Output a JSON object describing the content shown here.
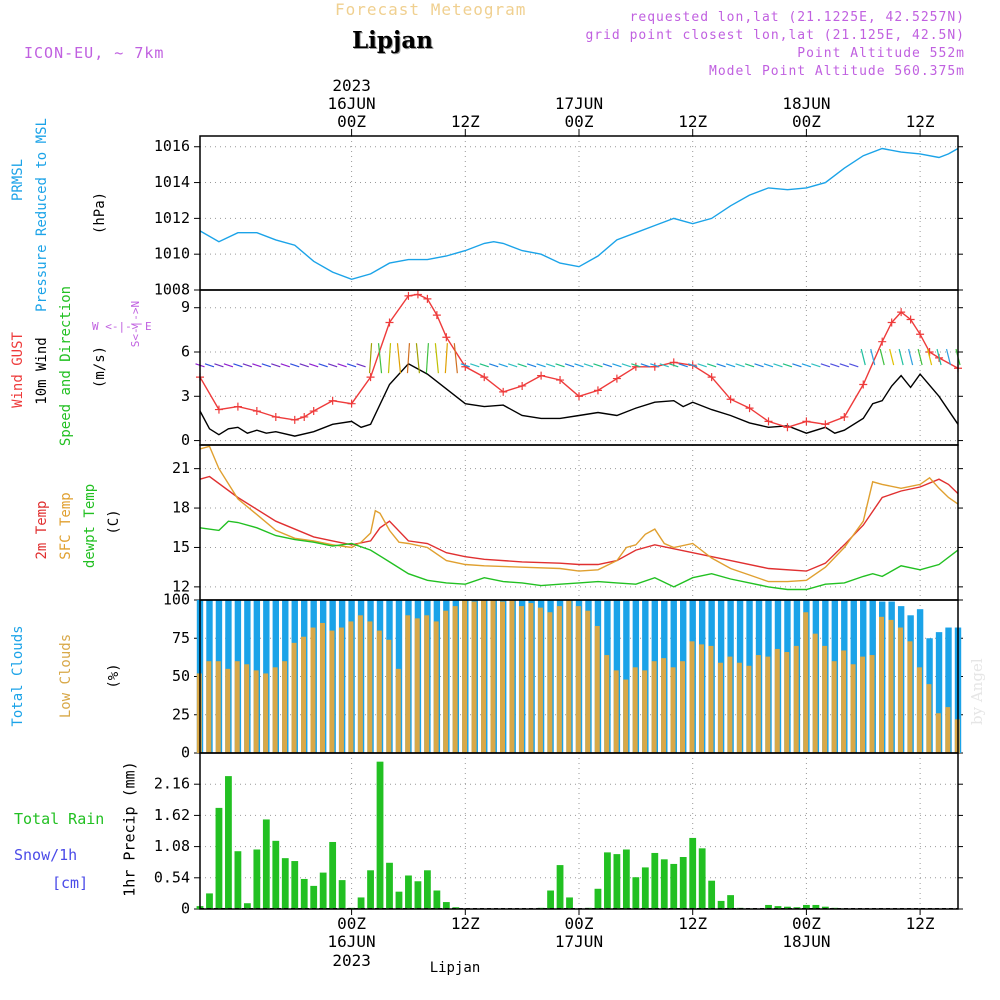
{
  "colors": {
    "pressure": "#1ba3e8",
    "gust": "#ee3b3b",
    "wind": "#000000",
    "temp2m": "#e03030",
    "sfc": "#e0a030",
    "dewpt": "#22c022",
    "totalClouds": "#1ba3e8",
    "lowClouds": "#d8a848",
    "rain": "#22c022",
    "header": "#c060e0",
    "title": "#f0d090",
    "snow": "#4a4ae8"
  },
  "header": {
    "model": "ICON-EU, ~ 7km",
    "title": "Forecast Meteogram",
    "location": "Lipjan",
    "info1": "requested lon,lat (21.1225E, 42.5257N)",
    "info2": "grid point closest lon,lat (21.125E, 42.5N)",
    "info3": "Point Altitude 552m",
    "info4": "Model Point Altitude 560.375m",
    "watermark": "by Angel"
  },
  "timeaxis": {
    "top": [
      {
        "l1": "2023",
        "l2": "16JUN",
        "l3": "00Z",
        "h": 16
      },
      {
        "l1": "",
        "l2": "",
        "l3": "12Z",
        "h": 28
      },
      {
        "l1": "",
        "l2": "17JUN",
        "l3": "00Z",
        "h": 40
      },
      {
        "l1": "",
        "l2": "",
        "l3": "12Z",
        "h": 52
      },
      {
        "l1": "",
        "l2": "18JUN",
        "l3": "00Z",
        "h": 64
      },
      {
        "l1": "",
        "l2": "",
        "l3": "12Z",
        "h": 76
      }
    ],
    "bottom": [
      {
        "l1": "00Z",
        "l2": "16JUN",
        "l3": "2023",
        "h": 16
      },
      {
        "l1": "12Z",
        "l2": "",
        "l3": "",
        "h": 28
      },
      {
        "l1": "00Z",
        "l2": "17JUN",
        "l3": "",
        "h": 40
      },
      {
        "l1": "12Z",
        "l2": "",
        "l3": "",
        "h": 52
      },
      {
        "l1": "00Z",
        "l2": "18JUN",
        "l3": "",
        "h": 64
      },
      {
        "l1": "12Z",
        "l2": "",
        "l3": "",
        "h": 76
      }
    ],
    "footer": "Lipjan"
  },
  "labels": {
    "p1": {
      "a": "PRMSL",
      "b": "Pressure Reduced to MSL",
      "c": "(hPa)"
    },
    "p2": {
      "a": "Wind GUST",
      "b": "10m Wind",
      "c": "Speed and Direction",
      "d": "(m/s)",
      "compass1": "W <-|-> E",
      "compass2": "S<-|->N"
    },
    "p3": {
      "a": "2m Temp",
      "b": "SFC Temp",
      "c": "dewpt Temp",
      "d": "(C)"
    },
    "p4": {
      "a": "Total Clouds",
      "b": "Low Clouds",
      "c": "(%)"
    },
    "p5": {
      "a": "Total  Rain",
      "b": "Snow/1h",
      "c": "[cm]",
      "d": "1hr Precip (mm)"
    }
  },
  "chart_data": [
    {
      "type": "line",
      "title": "PRMSL Pressure Reduced to MSL",
      "ylabel": "(hPa)",
      "x_hours_from": "2023-06-15 12Z",
      "ylim": [
        1008,
        1016.6
      ],
      "yticks": [
        1008,
        1010,
        1012,
        1014,
        1016
      ],
      "series": [
        {
          "name": "PRMSL",
          "color": "#1ba3e8",
          "x": [
            0,
            2,
            4,
            6,
            8,
            10,
            12,
            14,
            16,
            18,
            19,
            20,
            22,
            24,
            26,
            28,
            30,
            31,
            32,
            34,
            36,
            38,
            40,
            42,
            44,
            46,
            48,
            50,
            52,
            54,
            56,
            58,
            60,
            62,
            64,
            66,
            67,
            68,
            70,
            72,
            74,
            76,
            78,
            79,
            80
          ],
          "y": [
            1011.3,
            1010.7,
            1011.2,
            1011.2,
            1010.8,
            1010.5,
            1009.6,
            1009.0,
            1008.6,
            1008.9,
            1009.2,
            1009.5,
            1009.7,
            1009.7,
            1009.9,
            1010.2,
            1010.6,
            1010.7,
            1010.6,
            1010.2,
            1010.0,
            1009.5,
            1009.3,
            1009.9,
            1010.8,
            1011.2,
            1011.6,
            1012.0,
            1011.7,
            1012.0,
            1012.7,
            1013.3,
            1013.7,
            1013.6,
            1013.7,
            1014.0,
            1014.4,
            1014.8,
            1015.5,
            1015.9,
            1015.7,
            1015.6,
            1015.4,
            1015.6,
            1015.9
          ]
        }
      ]
    },
    {
      "type": "line",
      "title": "Wind GUST / 10m Wind Speed and Direction",
      "ylabel": "(m/s)",
      "ylim": [
        -0.3,
        10.2
      ],
      "yticks": [
        0,
        3,
        6,
        9
      ],
      "series": [
        {
          "name": "Wind GUST",
          "color": "#ee3b3b",
          "x": [
            0,
            2,
            4,
            6,
            8,
            10,
            11,
            12,
            14,
            16,
            18,
            20,
            22,
            23,
            24,
            25,
            26,
            28,
            30,
            32,
            34,
            36,
            38,
            40,
            42,
            44,
            46,
            48,
            50,
            52,
            54,
            56,
            58,
            60,
            62,
            64,
            66,
            68,
            70,
            72,
            73,
            74,
            75,
            76,
            77,
            78,
            80
          ],
          "y": [
            4.3,
            2.1,
            2.3,
            2.0,
            1.6,
            1.4,
            1.6,
            2.0,
            2.7,
            2.5,
            4.3,
            8.0,
            9.8,
            9.9,
            9.6,
            8.5,
            7.0,
            5.0,
            4.3,
            3.3,
            3.7,
            4.4,
            4.1,
            3.0,
            3.4,
            4.2,
            5.0,
            5.0,
            5.3,
            5.1,
            4.3,
            2.8,
            2.2,
            1.3,
            0.9,
            1.3,
            1.1,
            1.6,
            3.8,
            6.7,
            8.0,
            8.7,
            8.2,
            7.2,
            6.0,
            5.6,
            4.9
          ]
        },
        {
          "name": "10m Wind",
          "color": "#000000",
          "x": [
            0,
            1,
            2,
            3,
            4,
            5,
            6,
            7,
            8,
            10,
            12,
            14,
            16,
            17,
            18,
            20,
            22,
            24,
            26,
            28,
            30,
            32,
            34,
            36,
            38,
            40,
            42,
            44,
            46,
            48,
            50,
            51,
            52,
            54,
            56,
            58,
            60,
            62,
            64,
            66,
            67,
            68,
            70,
            71,
            72,
            73,
            74,
            75,
            76,
            78,
            80
          ],
          "y": [
            2.0,
            0.8,
            0.4,
            0.8,
            0.9,
            0.5,
            0.7,
            0.5,
            0.6,
            0.3,
            0.6,
            1.1,
            1.3,
            0.9,
            1.1,
            3.8,
            5.2,
            4.5,
            3.5,
            2.5,
            2.3,
            2.4,
            1.7,
            1.5,
            1.5,
            1.7,
            1.9,
            1.7,
            2.2,
            2.6,
            2.7,
            2.3,
            2.6,
            2.1,
            1.7,
            1.2,
            0.9,
            1.0,
            0.5,
            0.9,
            0.5,
            0.7,
            1.5,
            2.5,
            2.7,
            3.7,
            4.4,
            3.6,
            4.5,
            3.0,
            1.1
          ]
        }
      ]
    },
    {
      "type": "line",
      "title": "2m Temp / SFC Temp / dewpt Temp",
      "ylabel": "(C)",
      "ylim": [
        11,
        22.8
      ],
      "yticks": [
        12,
        15,
        18,
        21
      ],
      "series": [
        {
          "name": "2m Temp",
          "color": "#e03030",
          "x": [
            0,
            1,
            4,
            8,
            12,
            14,
            16,
            18,
            19,
            20,
            22,
            24,
            26,
            28,
            30,
            34,
            38,
            40,
            42,
            44,
            46,
            48,
            52,
            56,
            60,
            64,
            66,
            68,
            70,
            72,
            74,
            76,
            78,
            79,
            80
          ],
          "y": [
            20.2,
            20.4,
            18.8,
            17.0,
            15.8,
            15.5,
            15.2,
            15.5,
            16.5,
            17.0,
            15.5,
            15.3,
            14.6,
            14.3,
            14.1,
            13.9,
            13.8,
            13.7,
            13.7,
            14.0,
            14.8,
            15.2,
            14.6,
            14.0,
            13.4,
            13.2,
            13.8,
            15.2,
            16.7,
            18.8,
            19.3,
            19.6,
            20.2,
            19.8,
            19.1
          ]
        },
        {
          "name": "SFC Temp",
          "color": "#e0a030",
          "x": [
            0,
            1,
            2,
            4,
            6,
            8,
            10,
            12,
            14,
            16,
            17,
            18,
            18.5,
            19,
            20,
            21,
            22,
            24,
            26,
            28,
            30,
            34,
            38,
            40,
            42,
            44,
            45,
            46,
            47,
            48,
            49,
            50,
            52,
            54,
            56,
            58,
            60,
            62,
            64,
            66,
            68,
            70,
            71,
            72,
            74,
            76,
            77,
            78,
            79,
            80
          ],
          "y": [
            22.5,
            22.7,
            21.0,
            18.7,
            17.5,
            16.3,
            15.7,
            15.5,
            15.2,
            15.0,
            15.4,
            16.1,
            17.8,
            17.6,
            16.3,
            15.4,
            15.3,
            15.0,
            14.0,
            13.7,
            13.6,
            13.5,
            13.4,
            13.2,
            13.3,
            14.0,
            15.0,
            15.2,
            16.0,
            16.4,
            15.3,
            15.0,
            15.3,
            14.2,
            13.4,
            12.9,
            12.4,
            12.4,
            12.5,
            13.5,
            15.0,
            17.0,
            20.0,
            19.8,
            19.5,
            19.8,
            20.3,
            19.5,
            18.8,
            18.3
          ]
        },
        {
          "name": "dewpt Temp",
          "color": "#22c022",
          "x": [
            0,
            2,
            3,
            4,
            6,
            8,
            10,
            12,
            14,
            16,
            18,
            20,
            22,
            24,
            26,
            28,
            30,
            32,
            34,
            36,
            38,
            40,
            42,
            44,
            46,
            48,
            50,
            52,
            54,
            56,
            58,
            60,
            62,
            64,
            66,
            68,
            70,
            71,
            72,
            74,
            76,
            78,
            80
          ],
          "y": [
            16.5,
            16.3,
            17.0,
            16.9,
            16.5,
            15.9,
            15.6,
            15.4,
            15.1,
            15.3,
            14.8,
            13.9,
            13.0,
            12.5,
            12.3,
            12.2,
            12.7,
            12.4,
            12.3,
            12.1,
            12.2,
            12.3,
            12.4,
            12.3,
            12.2,
            12.7,
            12.0,
            12.7,
            13.0,
            12.6,
            12.3,
            12.0,
            11.8,
            11.8,
            12.2,
            12.3,
            12.8,
            13.0,
            12.8,
            13.6,
            13.3,
            13.7,
            14.8
          ]
        }
      ]
    },
    {
      "type": "bar",
      "title": "Total Clouds / Low Clouds",
      "ylabel": "(%)",
      "ylim": [
        0,
        100
      ],
      "yticks": [
        0,
        25,
        50,
        75,
        100
      ],
      "series": [
        {
          "name": "Total Clouds",
          "color": "#1ba3e8",
          "values": [
            100,
            100,
            100,
            100,
            100,
            100,
            100,
            100,
            100,
            100,
            100,
            100,
            100,
            100,
            100,
            100,
            100,
            100,
            100,
            100,
            100,
            100,
            100,
            100,
            100,
            100,
            100,
            100,
            100,
            100,
            100,
            100,
            100,
            100,
            100,
            100,
            100,
            100,
            100,
            100,
            100,
            100,
            100,
            100,
            100,
            100,
            100,
            100,
            100,
            100,
            100,
            100,
            100,
            100,
            100,
            100,
            100,
            100,
            100,
            100,
            100,
            100,
            100,
            100,
            100,
            100,
            100,
            100,
            100,
            100,
            100,
            100,
            99,
            99,
            96,
            90,
            94,
            75,
            79,
            82,
            82
          ]
        },
        {
          "name": "Low Clouds",
          "color": "#d8a848",
          "values": [
            52,
            60,
            60,
            55,
            60,
            58,
            54,
            52,
            56,
            60,
            72,
            76,
            82,
            85,
            80,
            82,
            86,
            90,
            86,
            80,
            74,
            55,
            90,
            88,
            90,
            86,
            93,
            96,
            100,
            99,
            100,
            100,
            99,
            100,
            96,
            98,
            95,
            92,
            96,
            100,
            96,
            93,
            83,
            64,
            54,
            48,
            56,
            54,
            60,
            62,
            56,
            60,
            73,
            71,
            70,
            59,
            63,
            59,
            57,
            64,
            63,
            68,
            66,
            70,
            92,
            78,
            70,
            60,
            67,
            58,
            63,
            64,
            89,
            87,
            82,
            73,
            56,
            45,
            26,
            30,
            22
          ]
        }
      ]
    },
    {
      "type": "bar",
      "title": "Total Rain / Snow/1h [cm]",
      "ylabel": "1hr Precip (mm)",
      "ylim": [
        0,
        2.7
      ],
      "yticks": [
        0,
        0.54,
        1.08,
        1.62,
        2.16
      ],
      "series": [
        {
          "name": "Total Rain",
          "color": "#22c022",
          "values": [
            0.05,
            0.27,
            1.75,
            2.3,
            1.0,
            0.1,
            1.03,
            1.55,
            1.18,
            0.88,
            0.83,
            0.52,
            0.4,
            0.63,
            1.16,
            0.5,
            0.02,
            0.2,
            0.67,
            2.55,
            0.8,
            0.3,
            0.58,
            0.48,
            0.67,
            0.32,
            0.12,
            0.03,
            0,
            0,
            0,
            0,
            0,
            0,
            0,
            0,
            0.02,
            0.32,
            0.76,
            0.2,
            0.01,
            0.02,
            0.35,
            0.98,
            0.95,
            1.03,
            0.55,
            0.72,
            0.97,
            0.86,
            0.78,
            0.9,
            1.23,
            1.05,
            0.49,
            0.14,
            0.24,
            0.02,
            0.01,
            0,
            0.07,
            0.05,
            0.04,
            0.03,
            0.07,
            0.07,
            0.04,
            0.02,
            0.01,
            0,
            0,
            0,
            0,
            0,
            0,
            0,
            0,
            0,
            0,
            0,
            0
          ]
        },
        {
          "name": "Snow/1h",
          "color": "#4a4ae8",
          "values": [
            0,
            0,
            0,
            0,
            0,
            0,
            0,
            0,
            0,
            0,
            0,
            0,
            0,
            0,
            0,
            0,
            0,
            0,
            0,
            0,
            0,
            0,
            0,
            0,
            0,
            0,
            0,
            0,
            0,
            0,
            0,
            0,
            0,
            0,
            0,
            0,
            0,
            0,
            0,
            0,
            0,
            0,
            0,
            0,
            0,
            0,
            0,
            0,
            0,
            0,
            0,
            0,
            0,
            0,
            0,
            0,
            0,
            0,
            0,
            0,
            0,
            0,
            0,
            0,
            0,
            0,
            0,
            0,
            0,
            0,
            0,
            0,
            0,
            0,
            0,
            0,
            0,
            0,
            0,
            0,
            0
          ]
        }
      ]
    }
  ]
}
